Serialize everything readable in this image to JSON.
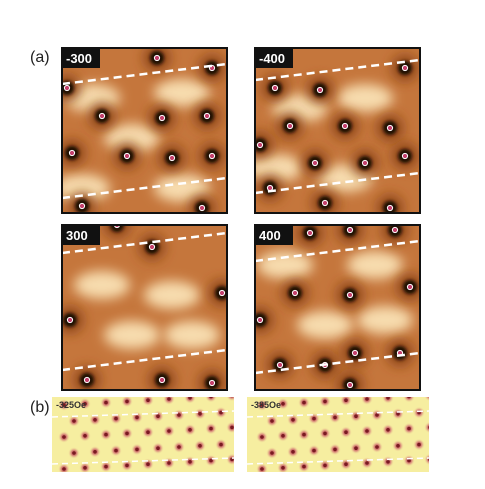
{
  "figure": {
    "panel_a": {
      "label": "(a)",
      "images": [
        {
          "label": "-300"
        },
        {
          "label": "-400"
        },
        {
          "label": "300"
        },
        {
          "label": "400"
        }
      ]
    },
    "panel_b": {
      "label": "(b)",
      "images": [
        {
          "label": "-325Oe"
        },
        {
          "label": "-385Oe"
        }
      ]
    }
  }
}
